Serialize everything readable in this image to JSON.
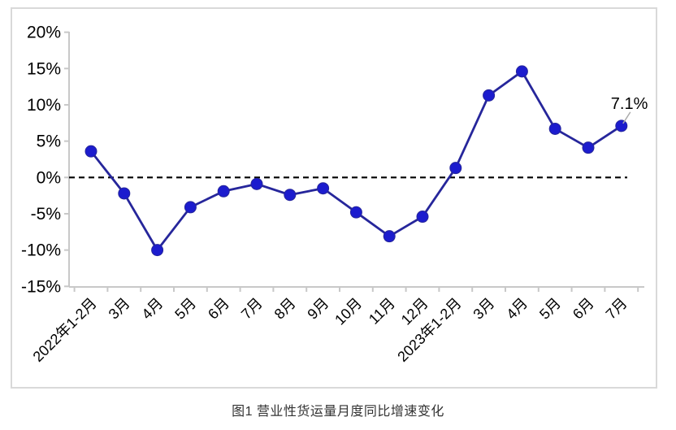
{
  "chart_data": {
    "type": "line",
    "title": "图1 营业性货运量月度同比增速变化",
    "categories": [
      "2022年1-2月",
      "3月",
      "4月",
      "5月",
      "6月",
      "7月",
      "8月",
      "9月",
      "10月",
      "11月",
      "12月",
      "2023年1-2月",
      "3月",
      "4月",
      "5月",
      "6月",
      "7月"
    ],
    "series": [
      {
        "name": "营业性货运量月度同比增速",
        "values": [
          3.6,
          -2.2,
          -10.0,
          -4.1,
          -1.9,
          -0.9,
          -2.4,
          -1.5,
          -4.8,
          -8.1,
          -5.4,
          1.3,
          11.3,
          14.6,
          6.7,
          4.1,
          7.1
        ]
      }
    ],
    "ylim": [
      -15,
      20
    ],
    "ytick_step": 5,
    "ytick_labels": [
      "20%",
      "15%",
      "10%",
      "5%",
      "0%",
      "-5%",
      "-10%",
      "-15%"
    ],
    "grid": false,
    "legend": "none",
    "zero_line": {
      "style": "dashed",
      "value": 0
    },
    "annotation": {
      "text": "7.1%",
      "target_index": 16
    },
    "colors": {
      "line": "#26269B",
      "marker": "#1C1CCE",
      "axis": "#C8C8C8",
      "frame": "#D9D9D9",
      "zero_line": "#000000",
      "leader": "#AAAAAA",
      "tick_text": "#000000",
      "caption_text": "#333333"
    }
  }
}
